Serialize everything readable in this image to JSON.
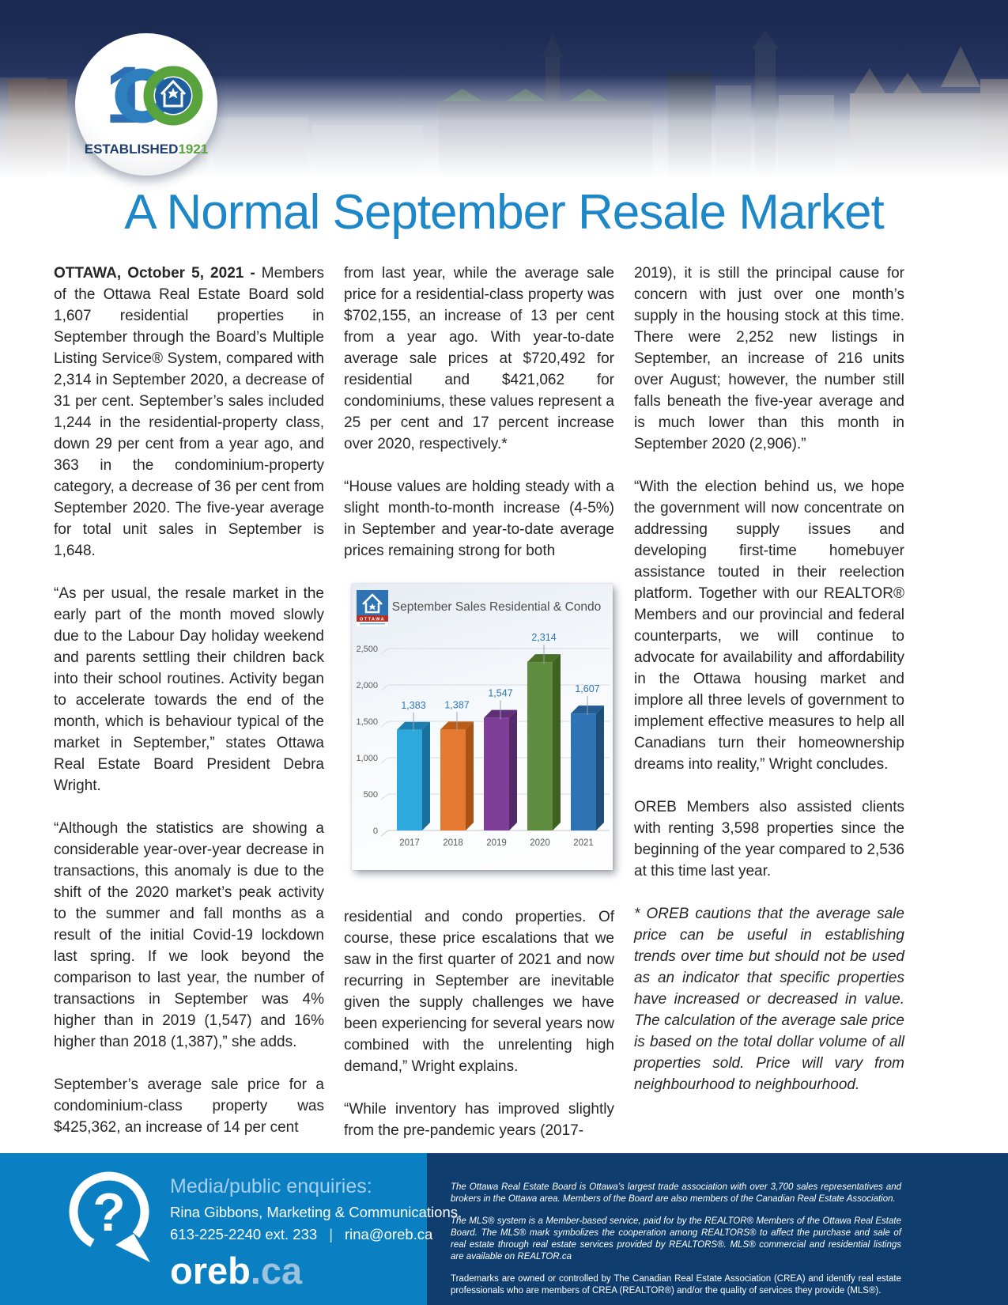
{
  "title": "A Normal September Resale Market",
  "colors": {
    "title_blue": "#1d87c8",
    "header_navy": "#1b2a52",
    "footer_blue": "#0a80c3",
    "footer_navy": "#0f3d6d",
    "body_text": "#262626"
  },
  "header": {
    "logo": {
      "number": "100",
      "established": "ESTABLISHED",
      "year": "1921"
    }
  },
  "article": {
    "col1": {
      "p1_lead": "OTTAWA, October 5, 2021 -",
      "p1_rest": " Members of the Ottawa Real Estate Board sold 1,607 residential properties in September through the Board’s Multiple Listing Service® System, compared with 2,314 in September 2020, a decrease of 31 per cent. September’s sales included 1,244 in the residential-property class, down 29 per cent from a year ago, and 363 in the condominium-property category, a decrease of 36 per cent from September 2020. The five-year average for total unit sales in September is 1,648.",
      "p2": "“As per usual, the resale market in the early part of the month moved slowly due to the Labour Day holiday weekend and parents settling their children back into their school routines. Activity began to accelerate towards the end of the month, which is behaviour typical of the market in September,” states Ottawa Real Estate Board President Debra Wright.",
      "p3": "“Although the statistics are showing a considerable year-over-year decrease in transactions, this anomaly is due to the shift of the 2020 market’s peak activity to the summer and fall months as a result of the initial Covid-19 lockdown last spring. If we look beyond the comparison to last year, the number of transactions in September was 4% higher than in 2019 (1,547) and 16% higher than 2018 (1,387),” she adds.",
      "p4": "September’s average sale price for a condominium-class property was $425,362, an increase of 14 per cent"
    },
    "col2": {
      "p1": "from last year, while the average sale price for a residential-class property was $702,155, an increase of 13 per cent from a year ago. With year-to-date average sale prices at $720,492 for residential and $421,062 for condominiums, these values represent a 25 per cent and 17 percent increase over 2020, respectively.*",
      "p2": "“House values are holding steady with a slight month-to-month increase (4-5%) in September and year-to-date average prices remaining strong for both",
      "p3": "residential and condo properties. Of course, these price escalations that we saw in the first quarter of 2021 and now recurring in September are inevitable given the supply challenges we have been experiencing for several years now combined with the unrelenting high demand,” Wright explains.",
      "p4": "“While inventory has improved slightly from the pre-pandemic years (2017-"
    },
    "col3": {
      "p1": "2019), it is still the principal cause for concern with just over one month’s supply in the housing stock at this time. There were 2,252 new listings in September, an increase of 216 units over August; however, the number still falls beneath the five-year average and is much lower than this month in September 2020 (2,906).”",
      "p2": "“With the election behind us, we hope the government will now concentrate on addressing supply issues and developing first-time homebuyer assistance touted in their reelection platform. Together with our REALTOR® Members and our provincial and federal counterparts, we will continue to advocate for availability and affordability in the Ottawa housing market and implore all three levels of government to implement effective measures to help all Canadians turn their homeownership dreams into reality,” Wright concludes.",
      "p3": "OREB Members also assisted clients with renting 3,598 properties since the beginning of the year compared to 2,536 at this time last year.",
      "p4_italic": "* OREB cautions that the average sale price can be useful in establishing trends over time but should not be used as an indicator that specific properties have increased or decreased in value. The calculation of the average sale price is based on the total dollar volume of all properties sold. Price will vary from neighbourhood to neighbourhood."
    }
  },
  "chart_data": {
    "type": "bar",
    "title": "September Sales Residential & Condo",
    "logo_text": "OTTAWA",
    "categories": [
      "2017",
      "2018",
      "2019",
      "2020",
      "2021"
    ],
    "values": [
      1383,
      1387,
      1547,
      2314,
      1607
    ],
    "labels": [
      "1,383",
      "1,387",
      "1,547",
      "2,314",
      "1,607"
    ],
    "xlabel": "",
    "ylabel": "",
    "ylim": [
      0,
      2500
    ],
    "ytick_values": [
      0,
      500,
      1000,
      1500,
      2000,
      2500
    ],
    "yticks": [
      "0",
      "500",
      "1,000",
      "1,500",
      "2,000",
      "2,500"
    ],
    "grid": true,
    "legend": false,
    "label_color": "#2E74B5",
    "bar_colors_front": [
      "#2EA9DE",
      "#E5792F",
      "#7F3F99",
      "#5F8C3F",
      "#2E74B5"
    ],
    "bar_colors_top": [
      "#1C7FB0",
      "#BC5D17",
      "#612F79",
      "#4A7029",
      "#235D92"
    ],
    "bar_colors_side": [
      "#1A6F9B",
      "#A85213",
      "#542968",
      "#40611F",
      "#1F4E79"
    ]
  },
  "footer": {
    "enquiries_label": "Media/public enquiries:",
    "contact_name": "Rina Gibbons, Marketing & Communications,",
    "phone": "613-225-2240 ext. 233",
    "separator": "|",
    "email": "rina@oreb.ca",
    "wordmark_main": "oreb",
    "wordmark_suffix": ".ca",
    "fine_print": [
      "The Ottawa Real Estate Board is Ottawa’s largest trade association with over 3,700 sales representatives and brokers in the Ottawa area. Members of the Board are also members of the Canadian Real Estate Association.",
      "The MLS® system is a Member-based service, paid for by the REALTOR® Members of the Ottawa Real Estate Board. The MLS® mark symbolizes the cooperation among REALTORS® to affect the purchase and sale of real estate through real estate services provided by REALTORS®. MLS® commercial and residential listings are available on REALTOR.ca",
      "Trademarks are owned or controlled by The Canadian Real Estate Association (CREA) and identify real estate professionals who are members of CREA (REALTOR®) and/or the quality of services they provide (MLS®)."
    ]
  }
}
